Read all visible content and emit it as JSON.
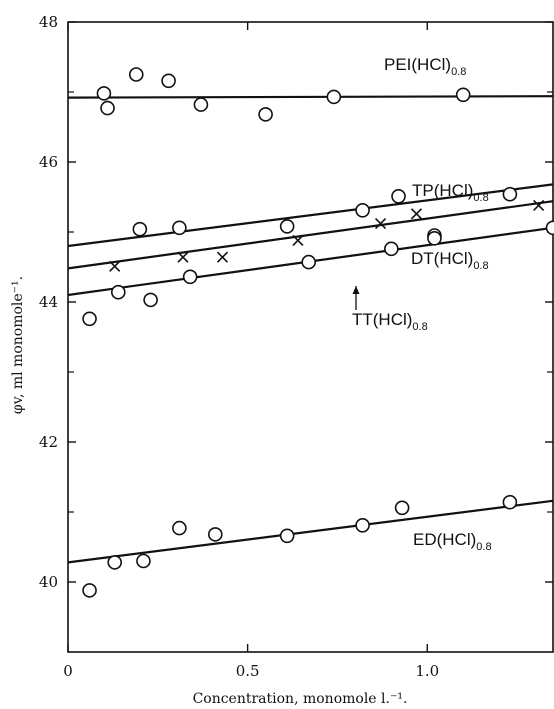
{
  "chart_data": {
    "type": "scatter",
    "xlabel": "Concentration, monomole l.⁻¹.",
    "ylabel": "φv, ml monomole⁻¹.",
    "xlim": [
      0,
      1.35
    ],
    "ylim": [
      39,
      48
    ],
    "x_ticks": [
      0,
      0.5,
      1.0
    ],
    "x_tick_labels": [
      "0",
      "0.5",
      "1.0"
    ],
    "y_ticks": [
      40,
      42,
      44,
      46,
      48
    ],
    "y_tick_labels": [
      "40",
      "42",
      "44",
      "46",
      "48"
    ],
    "grid": false,
    "series": [
      {
        "name": "PEI(HCl)0.8",
        "label_main": "PEI(HCl)",
        "label_sub": "0.8",
        "marker": "circle",
        "fit": {
          "x": [
            0,
            1.35
          ],
          "y": [
            46.92,
            46.94
          ]
        },
        "points": [
          [
            0.1,
            46.98
          ],
          [
            0.11,
            46.77
          ],
          [
            0.19,
            47.25
          ],
          [
            0.28,
            47.16
          ],
          [
            0.37,
            46.82
          ],
          [
            0.55,
            46.68
          ],
          [
            0.74,
            46.93
          ],
          [
            1.1,
            46.96
          ]
        ]
      },
      {
        "name": "TP(HCl)0.8",
        "label_main": "TP(HCl)",
        "label_sub": "0.8",
        "marker": "circle",
        "fit": {
          "x": [
            0,
            1.35
          ],
          "y": [
            44.8,
            45.68
          ]
        },
        "points": [
          [
            0.2,
            45.04
          ],
          [
            0.31,
            45.06
          ],
          [
            0.61,
            45.08
          ],
          [
            0.82,
            45.31
          ],
          [
            0.92,
            45.51
          ],
          [
            1.02,
            44.95
          ],
          [
            1.23,
            45.54
          ]
        ]
      },
      {
        "name": "TT(HCl)0.8",
        "label_main": "TT(HCl)",
        "label_sub": "0.8",
        "marker": "x",
        "fit": {
          "x": [
            0,
            1.35
          ],
          "y": [
            44.48,
            45.44
          ]
        },
        "points": [
          [
            0.13,
            44.51
          ],
          [
            0.32,
            44.64
          ],
          [
            0.43,
            44.64
          ],
          [
            0.64,
            44.88
          ],
          [
            0.87,
            45.12
          ],
          [
            0.97,
            45.26
          ],
          [
            1.31,
            45.38
          ]
        ]
      },
      {
        "name": "DT(HCl)0.8",
        "label_main": "DT(HCl)",
        "label_sub": "0.8",
        "marker": "circle",
        "fit": {
          "x": [
            0,
            1.35
          ],
          "y": [
            44.1,
            45.06
          ]
        },
        "points": [
          [
            0.06,
            43.76
          ],
          [
            0.14,
            44.14
          ],
          [
            0.23,
            44.03
          ],
          [
            0.34,
            44.36
          ],
          [
            0.67,
            44.57
          ],
          [
            0.9,
            44.76
          ],
          [
            1.02,
            44.91
          ],
          [
            1.35,
            45.06
          ]
        ]
      },
      {
        "name": "ED(HCl)0.8",
        "label_main": "ED(HCl)",
        "label_sub": "0.8",
        "marker": "circle",
        "fit": {
          "x": [
            0,
            1.35
          ],
          "y": [
            40.28,
            41.16
          ]
        },
        "points": [
          [
            0.06,
            39.88
          ],
          [
            0.13,
            40.28
          ],
          [
            0.21,
            40.3
          ],
          [
            0.31,
            40.77
          ],
          [
            0.41,
            40.68
          ],
          [
            0.61,
            40.66
          ],
          [
            0.82,
            40.81
          ],
          [
            0.93,
            41.06
          ],
          [
            1.23,
            41.14
          ]
        ]
      }
    ]
  }
}
